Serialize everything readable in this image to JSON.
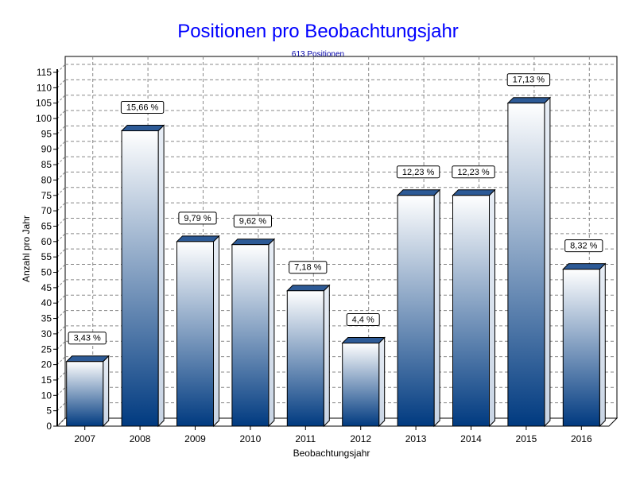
{
  "chart_data": {
    "type": "bar",
    "title": "Positionen pro Beobachtungsjahr",
    "subtitle": "613 Positionen",
    "xlabel": "Beobachtungsjahr",
    "ylabel": "Anzahl pro Jahr",
    "ylim": [
      0,
      115
    ],
    "ytick_step": 5,
    "grid": true,
    "categories": [
      "2007",
      "2008",
      "2009",
      "2010",
      "2011",
      "2012",
      "2013",
      "2014",
      "2015",
      "2016"
    ],
    "values": [
      21,
      96,
      60,
      59,
      44,
      27,
      75,
      75,
      105,
      51
    ],
    "data_labels": [
      "3,43 %",
      "15,66 %",
      "9,79 %",
      "9,62 %",
      "7,18 %",
      "4,4 %",
      "12,23 %",
      "12,23 %",
      "17,13 %",
      "8,32 %"
    ],
    "colors": {
      "title": "#0000ff",
      "bar_top": "#ffffff",
      "bar_bottom": "#003a80"
    }
  }
}
